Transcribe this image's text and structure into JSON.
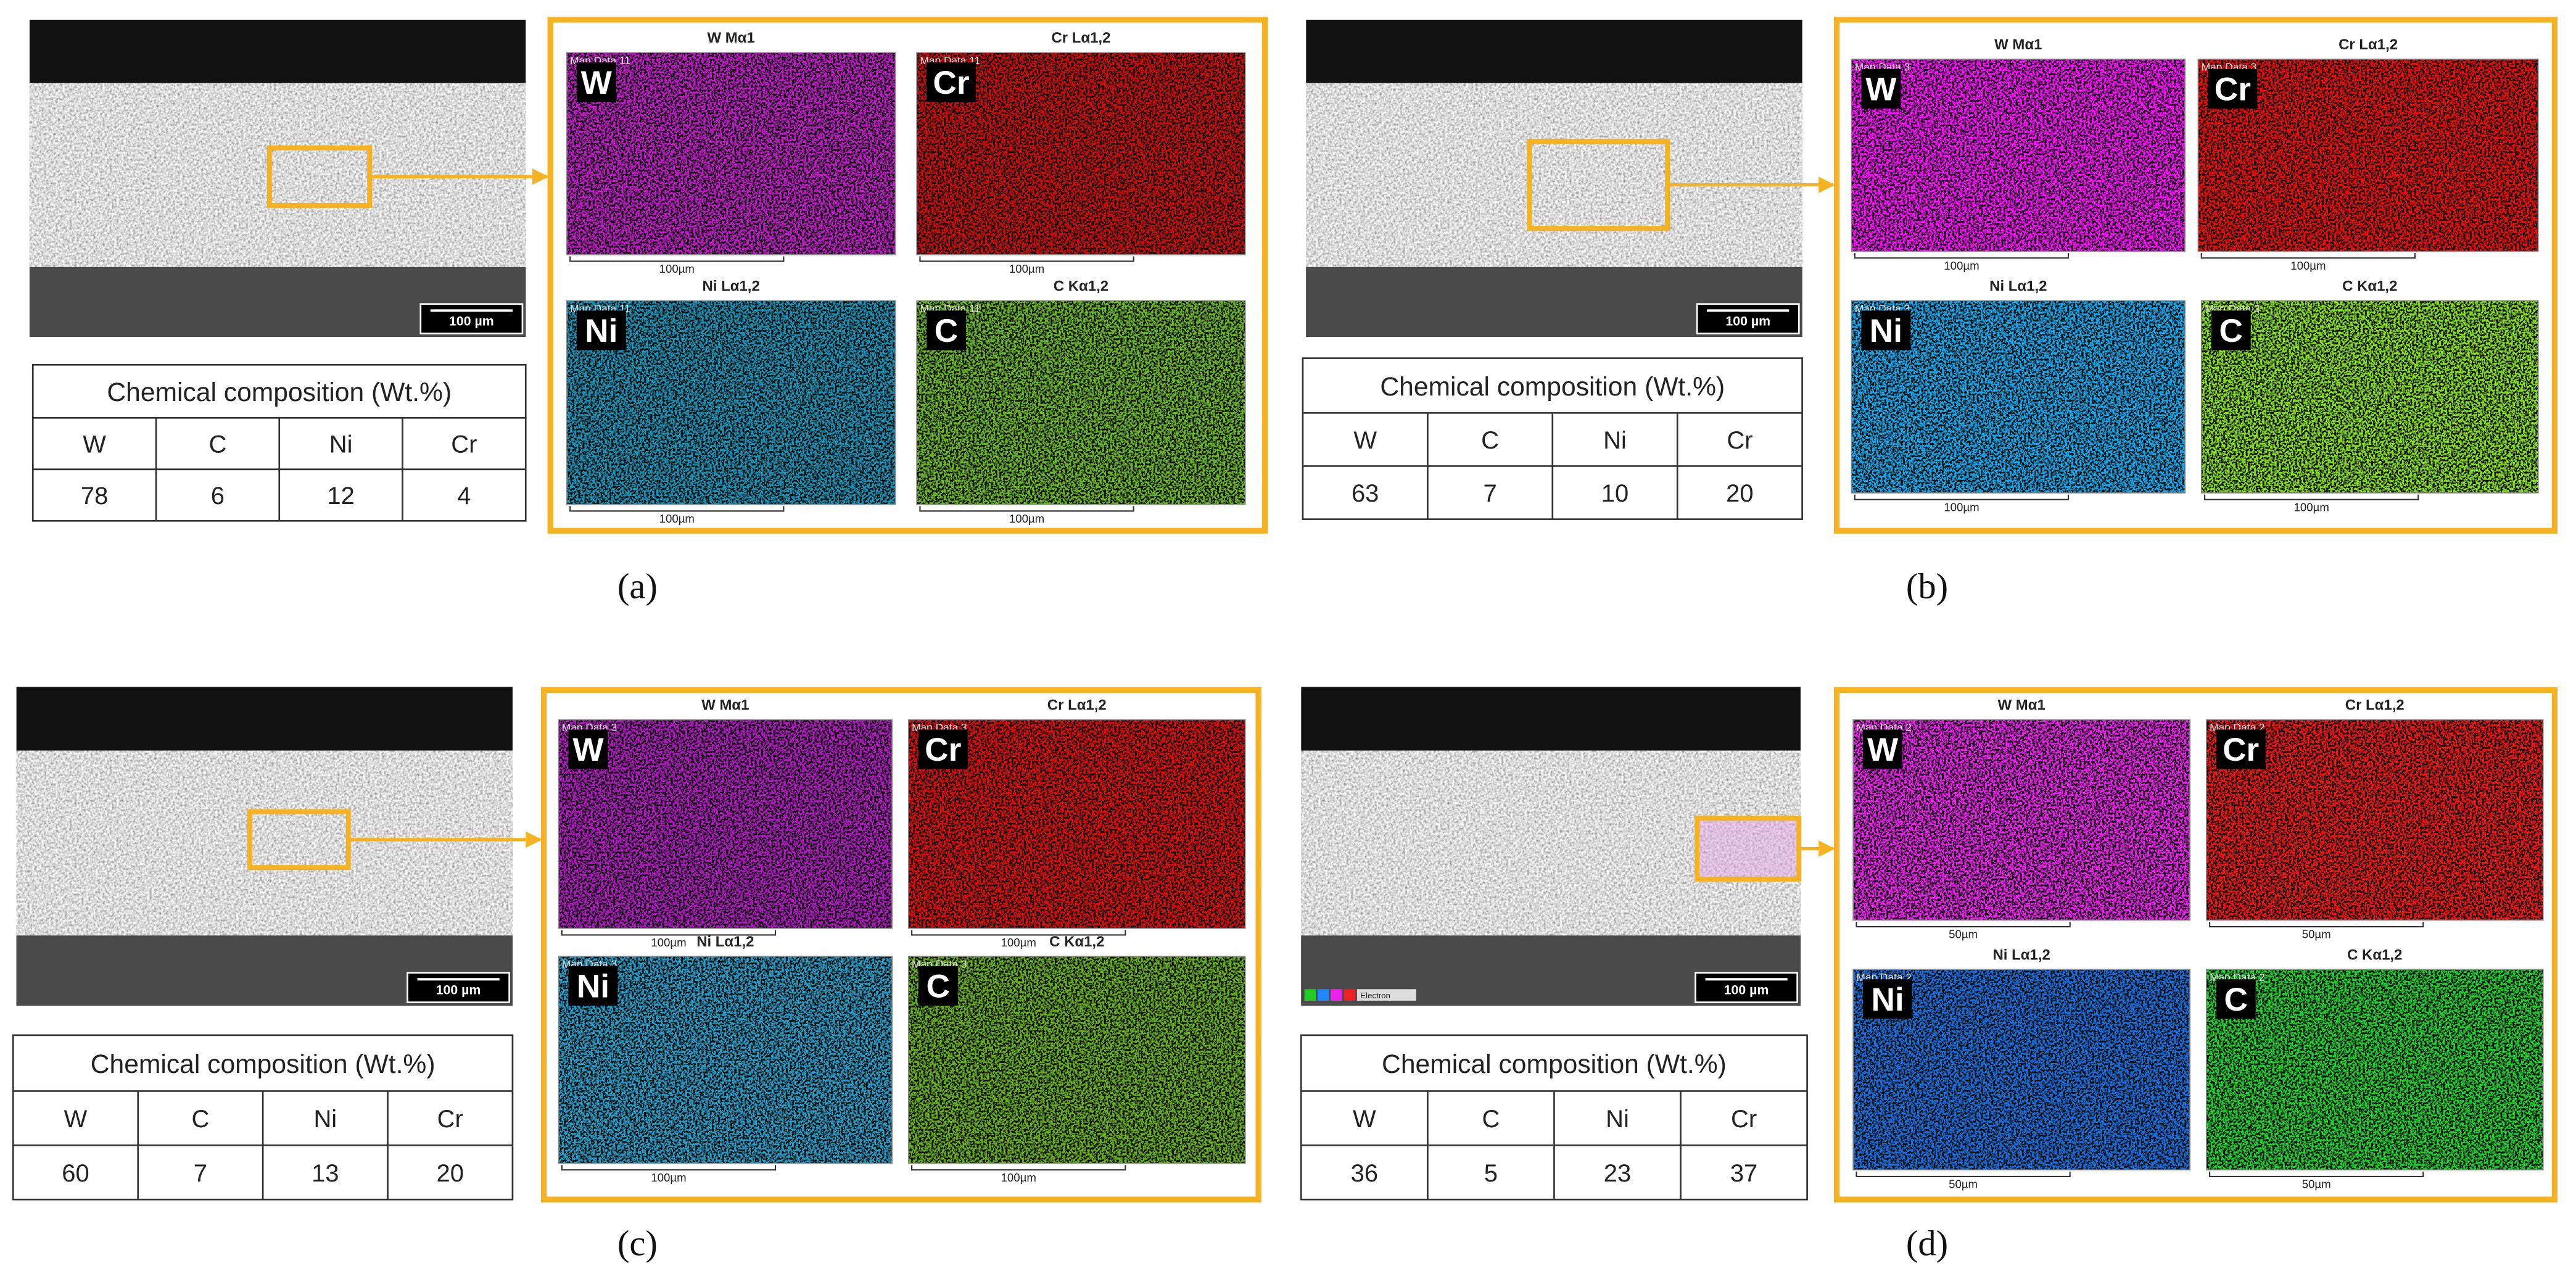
{
  "panels": [
    {
      "label": "(a)",
      "sem": {
        "scale_bar": "100 µm"
      },
      "table": {
        "title": "Chemical composition (Wt.%)",
        "headers": [
          "W",
          "C",
          "Ni",
          "Cr"
        ],
        "values": [
          78,
          6,
          12,
          4
        ]
      },
      "maps": [
        {
          "title": "W Mα1",
          "element": "W",
          "map_data": "Map Data 11",
          "scale": "100µm",
          "color": "#c21fc8"
        },
        {
          "title": "Cr Lα1,2",
          "element": "Cr",
          "map_data": "Map Data 11",
          "scale": "100µm",
          "color": "#d01010"
        },
        {
          "title": "Ni Lα1,2",
          "element": "Ni",
          "map_data": "Map Data 11",
          "scale": "100µm",
          "color": "#1f93b8"
        },
        {
          "title": "C Kα1,2",
          "element": "C",
          "map_data": "Map Data 11",
          "scale": "100µm",
          "color": "#6cb82a"
        }
      ]
    },
    {
      "label": "(b)",
      "sem": {
        "scale_bar": "100 µm"
      },
      "table": {
        "title": "Chemical composition (Wt.%)",
        "headers": [
          "W",
          "C",
          "Ni",
          "Cr"
        ],
        "values": [
          63,
          7,
          10,
          20
        ]
      },
      "maps": [
        {
          "title": "W Mα1",
          "element": "W",
          "map_data": "Map Data 3",
          "scale": "100µm",
          "color": "#ff10ff"
        },
        {
          "title": "Cr Lα1,2",
          "element": "Cr",
          "map_data": "Map Data 3",
          "scale": "100µm",
          "color": "#ee1010"
        },
        {
          "title": "Ni Lα1,2",
          "element": "Ni",
          "map_data": "Map Data 3",
          "scale": "100µm",
          "color": "#18a8ee"
        },
        {
          "title": "C Kα1,2",
          "element": "C",
          "map_data": "Map Data 3",
          "scale": "100µm",
          "color": "#88e020"
        }
      ]
    },
    {
      "label": "(c)",
      "sem": {
        "scale_bar": "100 µm"
      },
      "table": {
        "title": "Chemical composition (Wt.%)",
        "headers": [
          "W",
          "C",
          "Ni",
          "Cr"
        ],
        "values": [
          60,
          7,
          13,
          20
        ]
      },
      "maps": [
        {
          "title": "W Mα1",
          "element": "W",
          "map_data": "Map Data 3",
          "scale": "100µm",
          "color": "#b01cc0"
        },
        {
          "title": "Cr Lα1,2",
          "element": "Cr",
          "map_data": "Map Data 3",
          "scale": "100µm",
          "color": "#e01010"
        },
        {
          "title": "Ni Lα1,2",
          "element": "Ni",
          "map_data": "Map Data 3",
          "scale": "100µm",
          "color": "#2a9cc8"
        },
        {
          "title": "C Kα1,2",
          "element": "C",
          "map_data": "Map Data 3",
          "scale": "100µm",
          "color": "#68b020"
        }
      ]
    },
    {
      "label": "(d)",
      "sem": {
        "scale_bar": "100 µm",
        "legend": "Electron"
      },
      "table": {
        "title": "Chemical composition (Wt.%)",
        "headers": [
          "W",
          "C",
          "Ni",
          "Cr"
        ],
        "values": [
          36,
          5,
          23,
          37
        ]
      },
      "maps": [
        {
          "title": "W Mα1",
          "element": "W",
          "map_data": "Map Data 2",
          "scale": "50µm",
          "color": "#ee20ee"
        },
        {
          "title": "Cr Lα1,2",
          "element": "Cr",
          "map_data": "Map Data 2",
          "scale": "50µm",
          "color": "#f01818"
        },
        {
          "title": "Ni Lα1,2",
          "element": "Ni",
          "map_data": "Map Data 2",
          "scale": "50µm",
          "color": "#1c6ee0"
        },
        {
          "title": "C Kα1,2",
          "element": "C",
          "map_data": "Map Data 2",
          "scale": "50µm",
          "color": "#20d030"
        }
      ]
    }
  ]
}
